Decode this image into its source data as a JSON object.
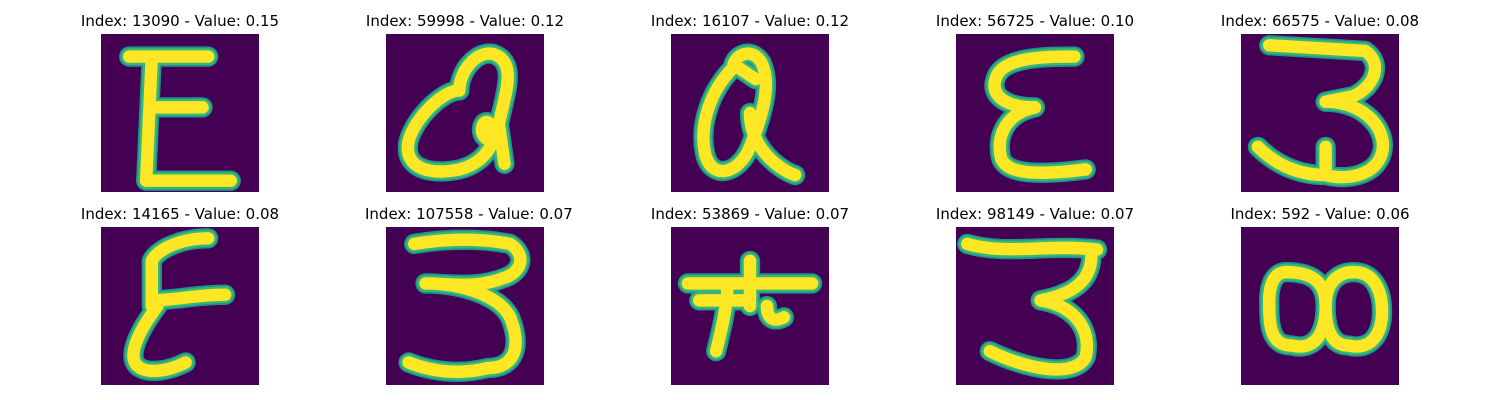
{
  "colors": {
    "background": "#440154",
    "stroke_core": "#fde725",
    "stroke_edge": "#35b779",
    "stroke_halo": "#21918c"
  },
  "panels": [
    {
      "title": "Index: 13090 - Value: 0.15"
    },
    {
      "title": "Index: 59998 - Value: 0.12"
    },
    {
      "title": "Index: 16107 - Value: 0.12"
    },
    {
      "title": "Index: 56725 - Value: 0.10"
    },
    {
      "title": "Index: 66575 - Value: 0.08"
    },
    {
      "title": "Index: 14165 - Value: 0.08"
    },
    {
      "title": "Index: 107558 - Value: 0.07"
    },
    {
      "title": "Index: 53869 - Value: 0.07"
    },
    {
      "title": "Index: 98149 - Value: 0.07"
    },
    {
      "title": "Index: 592 - Value: 0.06"
    }
  ]
}
